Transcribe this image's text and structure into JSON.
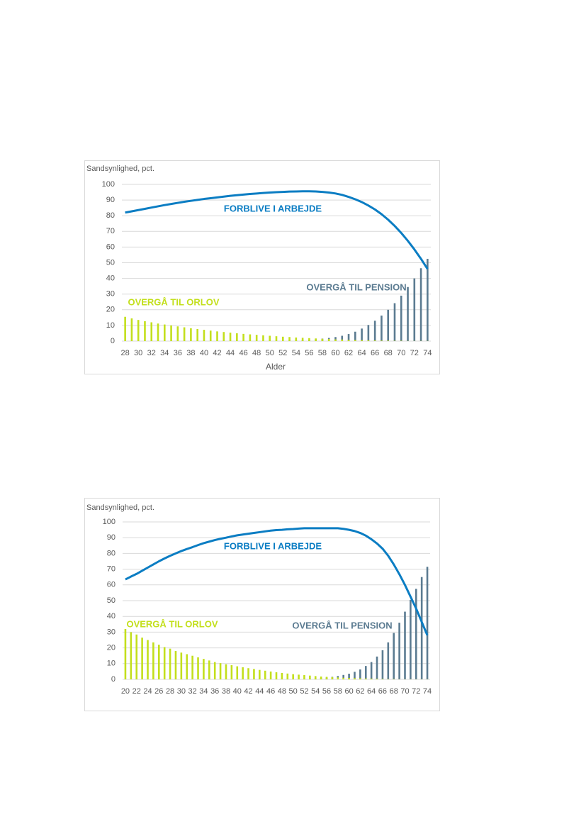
{
  "chart_data": [
    {
      "type": "bar",
      "y_label": "Sandsynlighed, pct.",
      "x_label": "Alder",
      "ylim": [
        0,
        100
      ],
      "yticks": [
        0,
        10,
        20,
        30,
        40,
        50,
        60,
        70,
        80,
        90,
        100
      ],
      "grid": true,
      "categories": [
        "28",
        null,
        "30",
        null,
        "32",
        null,
        "34",
        null,
        "36",
        null,
        "38",
        null,
        "40",
        null,
        "42",
        null,
        "44",
        null,
        "46",
        null,
        "48",
        null,
        "50",
        null,
        "52",
        null,
        "54",
        null,
        "56",
        null,
        "58",
        null,
        "60",
        null,
        "62",
        null,
        "64",
        null,
        "66",
        null,
        "68",
        null,
        "70",
        null,
        "72",
        null,
        "74"
      ],
      "series": [
        {
          "name": "OVERGÅ TIL PENSION",
          "type": "bar",
          "color": "#5b7b91",
          "values": [
            0,
            0,
            0,
            0,
            0,
            0,
            0,
            0,
            0,
            0,
            0,
            0,
            0,
            0,
            0,
            0,
            0,
            0,
            0,
            0,
            0,
            0,
            0,
            0,
            0,
            0.3,
            0.5,
            0.7,
            0.9,
            1.2,
            1.6,
            2,
            2.6,
            3.4,
            4.5,
            6,
            8,
            10.3,
            13,
            16.3,
            20,
            24.2,
            29,
            34.5,
            40,
            46.5,
            52.5
          ]
        },
        {
          "name": "OVERGÅ TIL ORLOV",
          "type": "bar",
          "color": "#c3df1c",
          "values": [
            15.5,
            14.5,
            13.5,
            12.7,
            12,
            11.2,
            10.6,
            10,
            9.4,
            8.8,
            8.2,
            7.7,
            7.2,
            6.7,
            6.2,
            5.8,
            5.4,
            5,
            4.6,
            4.3,
            4,
            3.7,
            3.4,
            3.1,
            2.8,
            2.6,
            2.3,
            2.1,
            1.9,
            1.7,
            1.5,
            1.3,
            1.1,
            1,
            0.8,
            0.7,
            0.6,
            0.5,
            0.4,
            0.3,
            0.3,
            0.2,
            0.2,
            0.1,
            0.1,
            0.1,
            0.1
          ]
        },
        {
          "name": "FORBLIVE I ARBEJDE",
          "type": "line",
          "color": "#0b7dc3",
          "values": [
            82,
            82.8,
            83.6,
            84.4,
            85.2,
            86,
            86.8,
            87.5,
            88.2,
            88.9,
            89.5,
            90.1,
            90.7,
            91.2,
            91.7,
            92.2,
            92.7,
            93.1,
            93.5,
            93.9,
            94.2,
            94.5,
            94.8,
            95,
            95.2,
            95.4,
            95.5,
            95.6,
            95.6,
            95.5,
            95.2,
            94.8,
            94.2,
            93.3,
            92,
            90.5,
            88.7,
            86.5,
            84,
            81,
            77.5,
            73.5,
            69,
            64,
            58.5,
            52.5,
            46
          ]
        }
      ]
    },
    {
      "type": "bar",
      "y_label": "Sandsynlighed, pct.",
      "ylim": [
        0,
        100
      ],
      "yticks": [
        0,
        10,
        20,
        30,
        40,
        50,
        60,
        70,
        80,
        90,
        100
      ],
      "grid": true,
      "categories": [
        "20",
        null,
        "22",
        null,
        "24",
        null,
        "26",
        null,
        "28",
        null,
        "30",
        null,
        "32",
        null,
        "34",
        null,
        "36",
        null,
        "38",
        null,
        "40",
        null,
        "42",
        null,
        "44",
        null,
        "46",
        null,
        "48",
        null,
        "50",
        null,
        "52",
        null,
        "54",
        null,
        "56",
        null,
        "58",
        null,
        "60",
        null,
        "62",
        null,
        "64",
        null,
        "66",
        null,
        "68",
        null,
        "70",
        null,
        "72",
        null,
        "74"
      ],
      "series": [
        {
          "name": "OVERGÅ TIL PENSION",
          "type": "bar",
          "color": "#5b7b91",
          "values": [
            0,
            0,
            0,
            0,
            0,
            0,
            0,
            0,
            0,
            0,
            0,
            0,
            0,
            0,
            0,
            0,
            0,
            0,
            0,
            0,
            0,
            0,
            0,
            0,
            0,
            0,
            0,
            0,
            0,
            0,
            0,
            0,
            0.3,
            0.5,
            0.7,
            0.9,
            1.2,
            1.6,
            2.1,
            2.8,
            3.6,
            4.8,
            6.3,
            8.5,
            11,
            14.5,
            18.5,
            23.5,
            29.5,
            36,
            43,
            50.5,
            57.5,
            65,
            71.5
          ]
        },
        {
          "name": "OVERGÅ TIL ORLOV",
          "type": "bar",
          "color": "#c3df1c",
          "values": [
            32,
            30,
            28.5,
            26.5,
            25,
            23.5,
            22,
            20.5,
            19.5,
            18,
            17,
            16,
            15,
            14,
            13,
            12,
            11,
            10.3,
            9.6,
            9,
            8.3,
            7.7,
            7.1,
            6.6,
            6,
            5.5,
            5,
            4.5,
            4.1,
            3.7,
            3.3,
            3,
            2.7,
            2.4,
            2.1,
            1.8,
            1.6,
            1.4,
            1.2,
            1,
            0.9,
            0.8,
            0.7,
            0.6,
            0.5,
            0.4,
            0.3,
            0.2,
            0.2,
            0.1,
            0.1,
            0.1,
            0.1,
            0.1,
            0.1
          ]
        },
        {
          "name": "FORBLIVE I ARBEJDE",
          "type": "line",
          "color": "#0b7dc3",
          "values": [
            63.5,
            65.3,
            67,
            69,
            71,
            73,
            75,
            76.8,
            78.5,
            80,
            81.5,
            82.8,
            84,
            85.3,
            86.5,
            87.5,
            88.5,
            89.3,
            90,
            90.8,
            91.5,
            92,
            92.5,
            93,
            93.5,
            94,
            94.5,
            94.8,
            95,
            95.3,
            95.5,
            95.8,
            96,
            96,
            96,
            96,
            96,
            96,
            96,
            95.6,
            95,
            94.2,
            93,
            91.3,
            89,
            86.3,
            83,
            78.5,
            73,
            66.8,
            60,
            52.5,
            45,
            36.5,
            28
          ]
        }
      ]
    }
  ]
}
